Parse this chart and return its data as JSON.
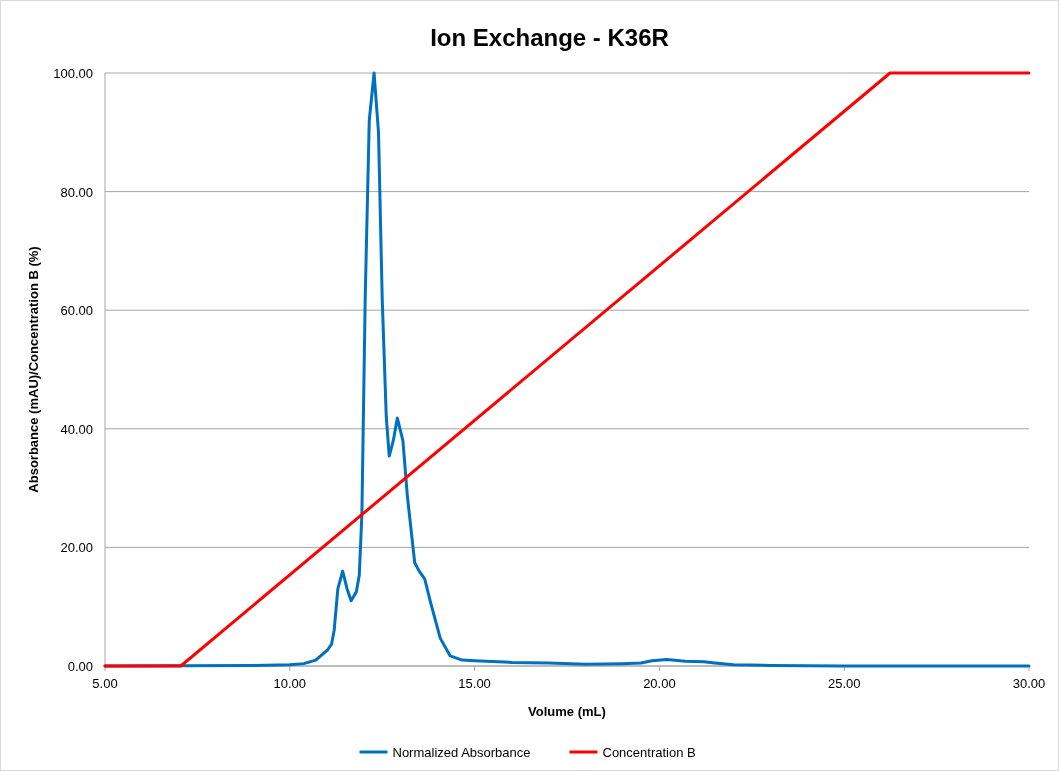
{
  "chart_data": {
    "type": "line",
    "title": "Ion Exchange - K36R",
    "xlabel": "Volume (mL)",
    "ylabel": "Absorbance (mAU)/Concentration B (%)",
    "xlim": [
      5,
      30
    ],
    "ylim": [
      0,
      100
    ],
    "xticks": [
      {
        "value": 5,
        "label": "5.00"
      },
      {
        "value": 10,
        "label": "10.00"
      },
      {
        "value": 15,
        "label": "15.00"
      },
      {
        "value": 20,
        "label": "20.00"
      },
      {
        "value": 25,
        "label": "25.00"
      },
      {
        "value": 30,
        "label": "30.00"
      }
    ],
    "yticks": [
      {
        "value": 0,
        "label": "0.00"
      },
      {
        "value": 20,
        "label": "20.00"
      },
      {
        "value": 40,
        "label": "40.00"
      },
      {
        "value": 60,
        "label": "60.00"
      },
      {
        "value": 80,
        "label": "80.00"
      },
      {
        "value": 100,
        "label": "100.00"
      }
    ],
    "grid": "y",
    "legend": "bottom",
    "marker": "none",
    "line_style": "solid",
    "series": [
      {
        "name": "Normalized Absorbance",
        "color": "#0070c0",
        "x": [
          5,
          9,
          10,
          10.38,
          10.7,
          11.02,
          11.13,
          11.2,
          11.3,
          11.43,
          11.55,
          11.66,
          11.8,
          11.88,
          11.95,
          12.04,
          12.15,
          12.28,
          12.4,
          12.5,
          12.61,
          12.69,
          12.8,
          12.91,
          13.06,
          13.18,
          13.38,
          13.5,
          13.65,
          13.81,
          14.07,
          14.34,
          14.66,
          15,
          16,
          17,
          18,
          19,
          19.5,
          19.8,
          20.2,
          20.7,
          21.2,
          21.5,
          22,
          23,
          25,
          30
        ],
        "values": [
          0,
          0.1,
          0.2,
          0.4,
          1,
          2.7,
          3.7,
          6,
          13,
          16,
          13,
          11,
          12.5,
          15.3,
          25.5,
          62,
          92,
          100,
          90,
          62,
          42,
          35.4,
          38,
          41.8,
          38,
          28.7,
          17.4,
          16,
          14.7,
          10.7,
          4.7,
          1.7,
          1,
          0.9,
          0.6,
          0.5,
          0.3,
          0.4,
          0.5,
          0.9,
          1.1,
          0.8,
          0.7,
          0.5,
          0.2,
          0.1,
          0,
          0
        ]
      },
      {
        "name": "Concentration B",
        "color": "#ff0000",
        "x": [
          5,
          7.05,
          26.24,
          30
        ],
        "values": [
          0,
          0,
          100,
          100
        ]
      }
    ]
  }
}
